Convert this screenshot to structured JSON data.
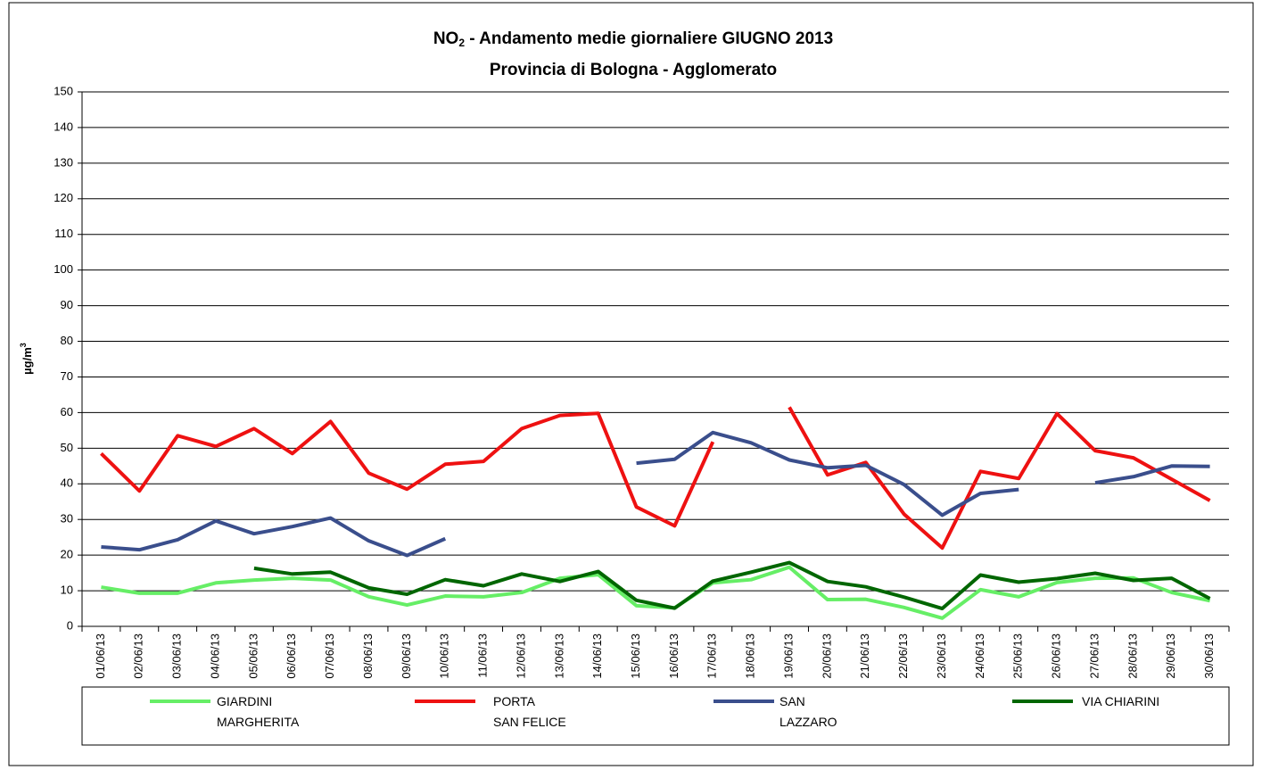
{
  "chart_data": {
    "type": "line",
    "title": [
      "NO",
      "2",
      " - Andamento medie giornaliere GIUGNO 2013"
    ],
    "subtitle": "Provincia di Bologna - Agglomerato",
    "ylabel": [
      "µg/m",
      "3"
    ],
    "categories": [
      "01/06/13",
      "02/06/13",
      "03/06/13",
      "04/06/13",
      "05/06/13",
      "06/06/13",
      "07/06/13",
      "08/06/13",
      "09/06/13",
      "10/06/13",
      "11/06/13",
      "12/06/13",
      "13/06/13",
      "14/06/13",
      "15/06/13",
      "16/06/13",
      "17/06/13",
      "18/06/13",
      "19/06/13",
      "20/06/13",
      "21/06/13",
      "22/06/13",
      "23/06/13",
      "24/06/13",
      "25/06/13",
      "26/06/13",
      "27/06/13",
      "28/06/13",
      "29/06/13",
      "30/06/13"
    ],
    "series": [
      {
        "name": "GIARDINI\nMARGHERITA",
        "color": "#66ee66",
        "values": [
          11,
          9.3,
          9.3,
          12.2,
          13,
          13.5,
          13,
          8.3,
          6,
          8.5,
          8.3,
          9.5,
          13.5,
          14.5,
          5.8,
          5.2,
          12.2,
          13.1,
          16.6,
          7.5,
          7.6,
          5.3,
          2.3,
          10.3,
          8.3,
          12.3,
          13.5,
          13.6,
          9.5,
          7.2
        ]
      },
      {
        "name": "PORTA\nSAN FELICE",
        "color": "#ee1111",
        "values": [
          48.5,
          38,
          53.5,
          50.5,
          55.5,
          48.5,
          57.5,
          43,
          38.5,
          45.5,
          46.3,
          55.5,
          59.2,
          59.8,
          33.5,
          28.2,
          51.8,
          null,
          61.5,
          42.5,
          46,
          31.5,
          22,
          43.5,
          41.5,
          59.7,
          49.3,
          47.3,
          41.3,
          35.3
        ]
      },
      {
        "name": "SAN\nLAZZARO",
        "color": "#3a4e8c",
        "values": [
          22.3,
          21.5,
          24.3,
          29.6,
          26,
          28,
          30.4,
          24,
          19.9,
          24.6,
          null,
          null,
          null,
          null,
          45.8,
          46.9,
          54.4,
          51.5,
          46.7,
          44.5,
          45.2,
          39.8,
          31.2,
          37.3,
          38.4,
          null,
          40.3,
          42,
          45,
          44.9
        ]
      },
      {
        "name": "VIA CHIARINI",
        "color": "#006600",
        "values": [
          null,
          null,
          null,
          null,
          16.3,
          14.7,
          15.2,
          10.8,
          9,
          13.1,
          11.4,
          14.7,
          12.6,
          15.4,
          7.3,
          5.1,
          12.7,
          15.2,
          17.9,
          12.6,
          11.1,
          8.2,
          5,
          14.4,
          12.4,
          13.4,
          14.9,
          12.9,
          13.5,
          7.8
        ]
      }
    ],
    "ylim": [
      0,
      150
    ],
    "yticks": [
      0,
      10,
      20,
      30,
      40,
      50,
      60,
      70,
      80,
      90,
      100,
      110,
      120,
      130,
      140,
      150
    ],
    "grid": true
  }
}
